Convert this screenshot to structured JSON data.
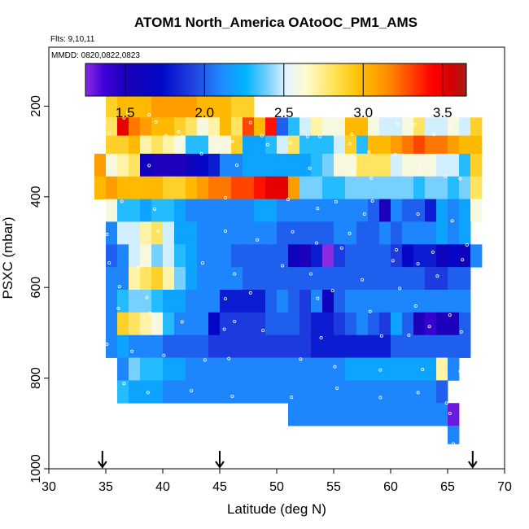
{
  "chart_data": {
    "type": "heatmap",
    "title": "ATOM1 North_America OAtoOC_PM1_AMS",
    "flights_note": "Flts: 9,10,11",
    "dates_note": "MMDD: 0820,0822,0823",
    "xlabel": "Latitude (deg N)",
    "ylabel": "PSXC (mbar)",
    "xlim": [
      30,
      70
    ],
    "ylim": [
      1000,
      70
    ],
    "x_ticks": [
      30,
      35,
      40,
      45,
      50,
      55,
      60,
      65,
      70
    ],
    "y_ticks": [
      200,
      400,
      600,
      800,
      1000
    ],
    "colorbar": {
      "vmin": 1.25,
      "vmax": 3.65,
      "ticks": [
        1.5,
        2.0,
        2.5,
        3.0,
        3.5
      ],
      "tick_labels": [
        "1.5",
        "2.0",
        "2.5",
        "3.0",
        "3.5"
      ]
    },
    "lat_bin_width": 1,
    "pressure_bin_height": 50,
    "rows": [
      {
        "p_top": 175,
        "p_bot": 225,
        "lat_start": 35,
        "values": [
          2.9,
          3.0,
          3.0,
          3.0,
          3.1,
          3.1,
          3.1,
          3.1,
          3.0,
          3.0,
          3.0,
          2.9,
          2.9
        ]
      },
      {
        "p_top": 225,
        "p_bot": 265,
        "lat_start": 35,
        "values": [
          2.8,
          3.5,
          3.2,
          3.1,
          3.0,
          3.0,
          2.9,
          2.8,
          2.6,
          2.7,
          3.0,
          2.8,
          3.3,
          3.0,
          3.4,
          2.0,
          2.3,
          2.5,
          2.7,
          2.6,
          2.6,
          3.0,
          3.0,
          2.6,
          2.5,
          2.5,
          2.6,
          2.8,
          2.5,
          2.5,
          2.6,
          2.5,
          2.9
        ]
      },
      {
        "p_top": 265,
        "p_bot": 305,
        "lat_start": 35,
        "values": [
          2.9,
          2.9,
          3.0,
          2.7,
          2.8,
          2.7,
          2.6,
          2.3,
          2.3,
          2.6,
          2.6,
          2.9,
          2.2,
          2.2,
          2.3,
          2.5,
          2.8,
          2.3,
          2.3,
          2.3,
          2.5,
          2.9,
          2.3,
          3.0,
          3.0,
          3.1,
          3.2,
          3.3,
          3.2,
          3.2,
          3.1,
          3.0,
          3.0
        ]
      },
      {
        "p_top": 305,
        "p_bot": 355,
        "lat_start": 34,
        "values": [
          3.1,
          2.6,
          2.7,
          2.8,
          1.6,
          1.5,
          1.5,
          1.5,
          1.6,
          1.7,
          1.8,
          2.1,
          2.1,
          2.2,
          2.2,
          2.2,
          2.2,
          2.2,
          2.2,
          2.3,
          2.4,
          2.6,
          2.6,
          2.8,
          2.8,
          2.8,
          2.5,
          2.6,
          2.6,
          2.6,
          2.5,
          2.5,
          2.3,
          2.9
        ]
      },
      {
        "p_top": 355,
        "p_bot": 405,
        "lat_start": 34,
        "values": [
          3.0,
          3.1,
          3.0,
          3.0,
          3.0,
          3.0,
          2.9,
          2.9,
          3.0,
          3.1,
          3.2,
          3.2,
          3.3,
          3.3,
          3.4,
          3.5,
          3.5,
          3.1,
          2.4,
          2.4,
          2.3,
          2.3,
          2.4,
          2.4,
          2.4,
          2.4,
          2.4,
          2.4,
          2.3,
          2.4,
          2.4,
          2.3,
          2.4,
          2.8
        ]
      },
      {
        "p_top": 405,
        "p_bot": 455,
        "lat_start": 35,
        "values": [
          2.6,
          2.3,
          2.3,
          2.2,
          2.3,
          2.3,
          2.2,
          2.1,
          2.1,
          2.1,
          2.1,
          2.1,
          2.1,
          2.2,
          2.2,
          2.1,
          2.1,
          2.1,
          2.1,
          2.1,
          2.1,
          2.1,
          2.1,
          2.0,
          1.5,
          2.1,
          2.0,
          2.0,
          1.8,
          2.2,
          2.1,
          2.2,
          2.6
        ]
      },
      {
        "p_top": 455,
        "p_bot": 505,
        "lat_start": 35,
        "values": [
          2.1,
          2.5,
          2.5,
          2.7,
          2.8,
          2.5,
          2.2,
          2.2,
          2.1,
          2.1,
          2.1,
          2.1,
          2.1,
          2.1,
          2.1,
          2.0,
          2.0,
          2.0,
          2.0,
          2.0,
          2.1,
          2.1,
          2.0,
          2.0,
          2.1,
          2.0,
          2.1,
          2.1,
          2.1,
          2.2,
          2.1,
          2.2
        ]
      },
      {
        "p_top": 505,
        "p_bot": 555,
        "lat_start": 35,
        "values": [
          2.0,
          2.1,
          2.5,
          2.6,
          2.4,
          2.5,
          2.3,
          2.2,
          2.1,
          2.1,
          2.1,
          2.0,
          2.0,
          2.0,
          2.0,
          2.0,
          1.6,
          1.5,
          1.8,
          1.2,
          1.9,
          2.0,
          2.0,
          2.0,
          2.0,
          1.9,
          1.7,
          1.8,
          1.8,
          1.6,
          1.7,
          1.6,
          2.1
        ]
      },
      {
        "p_top": 555,
        "p_bot": 605,
        "lat_start": 35,
        "values": [
          2.1,
          2.1,
          2.7,
          2.8,
          2.9,
          2.7,
          2.4,
          2.2,
          2.1,
          2.1,
          2.1,
          2.1,
          2.0,
          2.0,
          2.0,
          2.0,
          2.0,
          2.0,
          2.0,
          2.0,
          2.0,
          2.0,
          2.0,
          2.0,
          2.0,
          2.0,
          2.0,
          2.0,
          1.9,
          1.9,
          2.0,
          2.0
        ]
      },
      {
        "p_top": 605,
        "p_bot": 655,
        "lat_start": 35,
        "values": [
          2.1,
          2.3,
          2.4,
          2.4,
          2.3,
          2.2,
          2.2,
          2.1,
          2.1,
          2.1,
          1.8,
          1.8,
          1.8,
          1.8,
          2.0,
          2.1,
          2.0,
          1.9,
          2.1,
          1.6,
          2.0,
          2.1,
          2.1,
          2.1,
          2.1,
          2.1,
          2.1,
          2.1,
          2.1,
          2.1,
          2.1,
          2.1
        ]
      },
      {
        "p_top": 655,
        "p_bot": 705,
        "lat_start": 35,
        "values": [
          2.1,
          2.9,
          2.8,
          2.7,
          2.6,
          2.3,
          2.1,
          2.1,
          2.1,
          1.7,
          1.9,
          1.9,
          1.9,
          1.9,
          2.0,
          2.0,
          2.0,
          1.9,
          1.8,
          1.8,
          1.9,
          2.0,
          2.1,
          2.0,
          1.9,
          2.2,
          2.0,
          1.5,
          1.4,
          1.5,
          1.5,
          2.0
        ]
      },
      {
        "p_top": 705,
        "p_bot": 755,
        "lat_start": 35,
        "values": [
          2.1,
          2.2,
          2.1,
          2.1,
          2.1,
          2.0,
          2.0,
          2.0,
          2.0,
          1.9,
          1.9,
          1.9,
          1.9,
          1.9,
          1.9,
          1.9,
          1.9,
          1.9,
          1.8,
          1.8,
          1.8,
          1.8,
          1.8,
          1.8,
          1.8,
          2.0,
          2.0,
          2.0,
          2.0,
          2.0,
          2.0,
          2.0
        ]
      },
      {
        "p_top": 755,
        "p_bot": 805,
        "lat_start": 36,
        "values": [
          2.1,
          2.4,
          2.3,
          2.3,
          2.2,
          2.2,
          2.1,
          2.1,
          2.1,
          2.1,
          2.1,
          2.1,
          2.1,
          2.1,
          2.1,
          2.1,
          2.1,
          2.1,
          2.1,
          2.1,
          2.2,
          2.2,
          2.2,
          2.2,
          2.2,
          2.2,
          2.2,
          2.2,
          2.7,
          2.1
        ]
      },
      {
        "p_top": 805,
        "p_bot": 855,
        "lat_start": 36,
        "values": [
          2.3,
          2.2,
          2.2,
          2.2,
          2.1,
          2.1,
          2.1,
          2.1,
          2.1,
          2.1,
          2.1,
          2.1,
          2.1,
          2.1,
          2.1,
          2.1,
          2.1,
          2.1,
          2.1,
          2.1,
          2.1,
          2.1,
          2.1,
          2.1,
          2.1,
          2.1,
          2.1,
          2.1,
          2.0
        ]
      },
      {
        "p_top": 855,
        "p_bot": 905,
        "lat_start": 51,
        "values": [
          2.1,
          2.1,
          2.1,
          2.1,
          2.1,
          2.1,
          2.1,
          2.1,
          2.1,
          2.1,
          2.1,
          2.1,
          2.1,
          2.1
        ]
      },
      {
        "p_top": 855,
        "p_bot": 905,
        "lat_start": 65,
        "values": [
          1.3
        ]
      },
      {
        "p_top": 905,
        "p_bot": 945,
        "lat_start": 65,
        "values": [
          2.1
        ]
      }
    ],
    "flight_markers_lat": [
      34.7,
      45.0,
      67.2
    ],
    "sample_points": [
      [
        36.9,
        214
      ],
      [
        38.8,
        219
      ],
      [
        36.6,
        226
      ],
      [
        39.4,
        235
      ],
      [
        47.7,
        236
      ],
      [
        35.3,
        261
      ],
      [
        40.3,
        265
      ],
      [
        41.4,
        257
      ],
      [
        41.7,
        267
      ],
      [
        46.1,
        278
      ],
      [
        48.7,
        265
      ],
      [
        49.2,
        285
      ],
      [
        51.2,
        281
      ],
      [
        52.7,
        267
      ],
      [
        53.8,
        267
      ],
      [
        56.6,
        262
      ],
      [
        56.4,
        283
      ],
      [
        58.1,
        301
      ],
      [
        60.6,
        239
      ],
      [
        62.1,
        240
      ],
      [
        63.8,
        262
      ],
      [
        65.3,
        248
      ],
      [
        38.8,
        331
      ],
      [
        43.4,
        305
      ],
      [
        46.5,
        330
      ],
      [
        52.9,
        337
      ],
      [
        56.6,
        347
      ],
      [
        58.3,
        359
      ],
      [
        60.4,
        307
      ],
      [
        62.5,
        330
      ],
      [
        64.8,
        355
      ],
      [
        66.1,
        360
      ],
      [
        36.4,
        410
      ],
      [
        39.3,
        427
      ],
      [
        45.5,
        402
      ],
      [
        51.0,
        406
      ],
      [
        53.6,
        426
      ],
      [
        55.2,
        411
      ],
      [
        57.7,
        438
      ],
      [
        58.4,
        409
      ],
      [
        62.4,
        438
      ],
      [
        65.4,
        453
      ],
      [
        35.1,
        483
      ],
      [
        39.6,
        476
      ],
      [
        45.5,
        476
      ],
      [
        48.3,
        495
      ],
      [
        51.4,
        477
      ],
      [
        53.5,
        502
      ],
      [
        55.7,
        513
      ],
      [
        56.4,
        481
      ],
      [
        60.5,
        517
      ],
      [
        63.7,
        522
      ],
      [
        66.7,
        506
      ],
      [
        35.3,
        546
      ],
      [
        37.9,
        555
      ],
      [
        43.5,
        546
      ],
      [
        46.3,
        570
      ],
      [
        50.5,
        552
      ],
      [
        53.0,
        570
      ],
      [
        57.5,
        583
      ],
      [
        60.2,
        541
      ],
      [
        62.4,
        548
      ],
      [
        64.1,
        575
      ],
      [
        66.3,
        539
      ],
      [
        36.2,
        598
      ],
      [
        38.6,
        622
      ],
      [
        45.5,
        625
      ],
      [
        47.7,
        612
      ],
      [
        53.6,
        624
      ],
      [
        54.9,
        607
      ],
      [
        58.2,
        653
      ],
      [
        60.8,
        602
      ],
      [
        62.2,
        641
      ],
      [
        65.2,
        661
      ],
      [
        36.1,
        646
      ],
      [
        38.9,
        657
      ],
      [
        41.7,
        676
      ],
      [
        45.4,
        692
      ],
      [
        46.3,
        675
      ],
      [
        48.8,
        695
      ],
      [
        53.9,
        711
      ],
      [
        59.2,
        707
      ],
      [
        61.6,
        705
      ],
      [
        63.4,
        686
      ],
      [
        66.2,
        698
      ],
      [
        35.1,
        725
      ],
      [
        37.3,
        741
      ],
      [
        40.1,
        750
      ],
      [
        43.7,
        760
      ],
      [
        45.8,
        757
      ],
      [
        52.1,
        758
      ],
      [
        55.1,
        775
      ],
      [
        59.1,
        782
      ],
      [
        62.8,
        781
      ],
      [
        66.1,
        785
      ],
      [
        36.6,
        812
      ],
      [
        38.7,
        832
      ],
      [
        42.5,
        828
      ],
      [
        46.1,
        840
      ],
      [
        51.3,
        842
      ],
      [
        55.3,
        822
      ],
      [
        59.1,
        843
      ],
      [
        62.4,
        832
      ],
      [
        64.9,
        855
      ],
      [
        65.2,
        878
      ],
      [
        65.5,
        945
      ]
    ]
  }
}
